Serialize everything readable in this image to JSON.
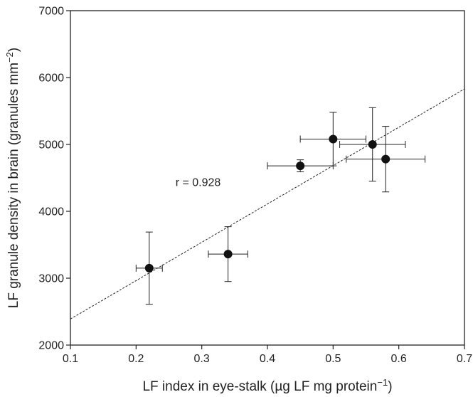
{
  "chart_data": {
    "type": "scatter",
    "title": "",
    "xlabel": "LF index in eye-stalk (µg LF mg protein",
    "xlabel_sup": "−1",
    "xlabel_end": ")",
    "ylabel": "LF granule density in brain (granules mm",
    "ylabel_sup": "−2",
    "ylabel_end": ")",
    "xlim": [
      0.1,
      0.7
    ],
    "ylim": [
      2000,
      7000
    ],
    "x_ticks": [
      "0.1",
      "0.2",
      "0.3",
      "0.4",
      "0.5",
      "0.6",
      "0.7"
    ],
    "y_ticks": [
      "2000",
      "3000",
      "4000",
      "5000",
      "6000",
      "7000"
    ],
    "grid": false,
    "points": [
      {
        "x": 0.22,
        "y": 3150,
        "xerr": 0.02,
        "yerr": 540
      },
      {
        "x": 0.34,
        "y": 3360,
        "xerr": 0.03,
        "yerr": 410
      },
      {
        "x": 0.45,
        "y": 4680,
        "xerr": 0.05,
        "yerr": 90
      },
      {
        "x": 0.5,
        "y": 5080,
        "xerr": 0.05,
        "yerr": 400
      },
      {
        "x": 0.56,
        "y": 5000,
        "xerr": 0.05,
        "yerr": 550
      },
      {
        "x": 0.58,
        "y": 4780,
        "xerr": 0.06,
        "yerr": 490
      }
    ],
    "fit_line": {
      "x": [
        0.1,
        0.7
      ],
      "y": [
        2390,
        5830
      ],
      "style": "dashed"
    },
    "annotation": {
      "text": "r = 0.928",
      "x": 0.26,
      "y": 4380
    }
  }
}
